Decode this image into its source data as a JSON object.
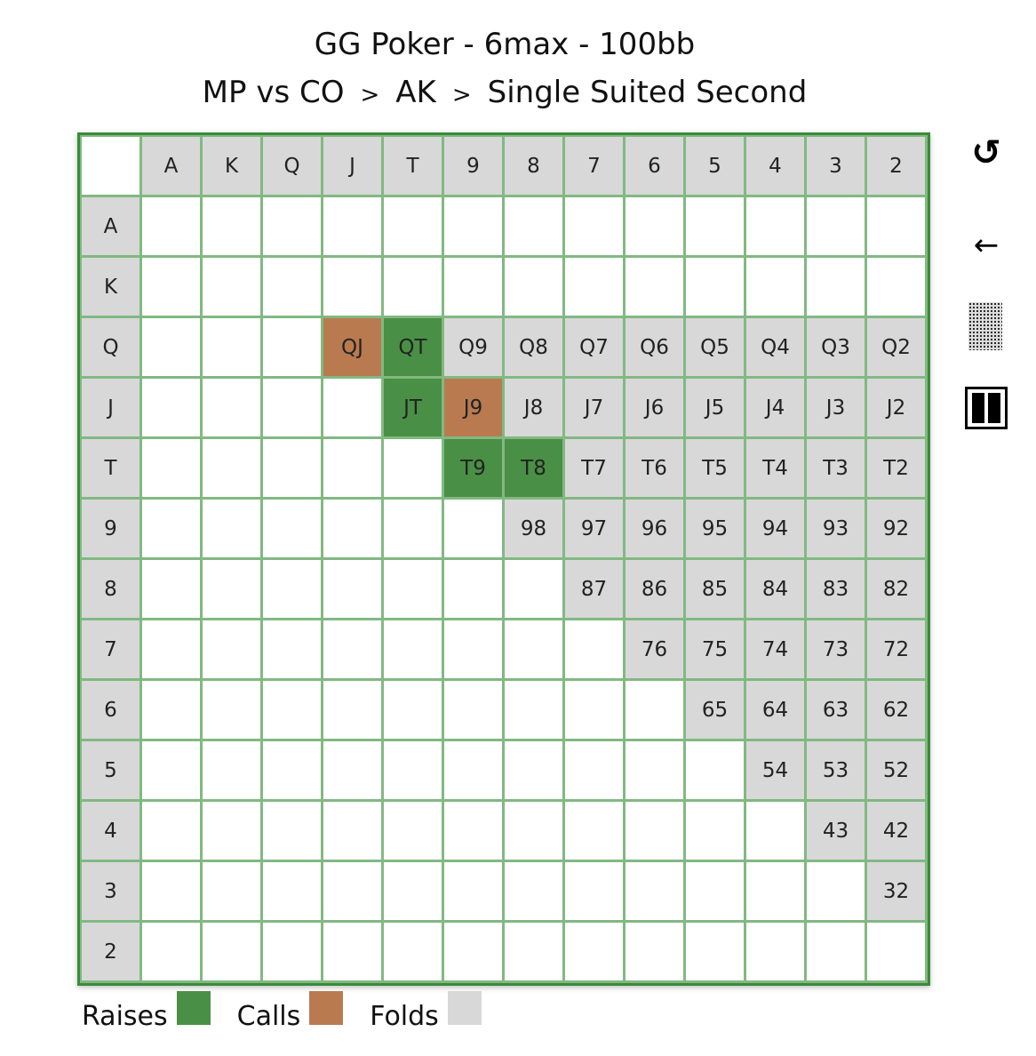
{
  "title": {
    "line1": "GG Poker - 6max - 100bb",
    "breadcrumb": [
      "MP vs CO",
      "AK",
      "Single Suited Second"
    ],
    "separator": ">"
  },
  "colors": {
    "raise": "#4a8f46",
    "call": "#b97a50",
    "fold": "#d8d8d8",
    "grid_border": "#3a8a3a"
  },
  "ranks": [
    "A",
    "K",
    "Q",
    "J",
    "T",
    "9",
    "8",
    "7",
    "6",
    "5",
    "4",
    "3",
    "2"
  ],
  "matrix": {
    "rows": [
      {
        "label": "A",
        "cells": [
          {
            "hand": "",
            "action": "empty"
          },
          {
            "hand": "",
            "action": "empty"
          },
          {
            "hand": "",
            "action": "empty"
          },
          {
            "hand": "",
            "action": "empty"
          },
          {
            "hand": "",
            "action": "empty"
          },
          {
            "hand": "",
            "action": "empty"
          },
          {
            "hand": "",
            "action": "empty"
          },
          {
            "hand": "",
            "action": "empty"
          },
          {
            "hand": "",
            "action": "empty"
          },
          {
            "hand": "",
            "action": "empty"
          },
          {
            "hand": "",
            "action": "empty"
          },
          {
            "hand": "",
            "action": "empty"
          },
          {
            "hand": "",
            "action": "empty"
          }
        ]
      },
      {
        "label": "K",
        "cells": [
          {
            "hand": "",
            "action": "empty"
          },
          {
            "hand": "",
            "action": "empty"
          },
          {
            "hand": "",
            "action": "empty"
          },
          {
            "hand": "",
            "action": "empty"
          },
          {
            "hand": "",
            "action": "empty"
          },
          {
            "hand": "",
            "action": "empty"
          },
          {
            "hand": "",
            "action": "empty"
          },
          {
            "hand": "",
            "action": "empty"
          },
          {
            "hand": "",
            "action": "empty"
          },
          {
            "hand": "",
            "action": "empty"
          },
          {
            "hand": "",
            "action": "empty"
          },
          {
            "hand": "",
            "action": "empty"
          },
          {
            "hand": "",
            "action": "empty"
          }
        ]
      },
      {
        "label": "Q",
        "cells": [
          {
            "hand": "",
            "action": "empty"
          },
          {
            "hand": "",
            "action": "empty"
          },
          {
            "hand": "",
            "action": "empty"
          },
          {
            "hand": "QJ",
            "action": "call"
          },
          {
            "hand": "QT",
            "action": "raise"
          },
          {
            "hand": "Q9",
            "action": "fold"
          },
          {
            "hand": "Q8",
            "action": "fold"
          },
          {
            "hand": "Q7",
            "action": "fold"
          },
          {
            "hand": "Q6",
            "action": "fold"
          },
          {
            "hand": "Q5",
            "action": "fold"
          },
          {
            "hand": "Q4",
            "action": "fold"
          },
          {
            "hand": "Q3",
            "action": "fold"
          },
          {
            "hand": "Q2",
            "action": "fold"
          }
        ]
      },
      {
        "label": "J",
        "cells": [
          {
            "hand": "",
            "action": "empty"
          },
          {
            "hand": "",
            "action": "empty"
          },
          {
            "hand": "",
            "action": "empty"
          },
          {
            "hand": "",
            "action": "empty"
          },
          {
            "hand": "JT",
            "action": "raise"
          },
          {
            "hand": "J9",
            "action": "call"
          },
          {
            "hand": "J8",
            "action": "fold"
          },
          {
            "hand": "J7",
            "action": "fold"
          },
          {
            "hand": "J6",
            "action": "fold"
          },
          {
            "hand": "J5",
            "action": "fold"
          },
          {
            "hand": "J4",
            "action": "fold"
          },
          {
            "hand": "J3",
            "action": "fold"
          },
          {
            "hand": "J2",
            "action": "fold"
          }
        ]
      },
      {
        "label": "T",
        "cells": [
          {
            "hand": "",
            "action": "empty"
          },
          {
            "hand": "",
            "action": "empty"
          },
          {
            "hand": "",
            "action": "empty"
          },
          {
            "hand": "",
            "action": "empty"
          },
          {
            "hand": "",
            "action": "empty"
          },
          {
            "hand": "T9",
            "action": "raise"
          },
          {
            "hand": "T8",
            "action": "raise"
          },
          {
            "hand": "T7",
            "action": "fold"
          },
          {
            "hand": "T6",
            "action": "fold"
          },
          {
            "hand": "T5",
            "action": "fold"
          },
          {
            "hand": "T4",
            "action": "fold"
          },
          {
            "hand": "T3",
            "action": "fold"
          },
          {
            "hand": "T2",
            "action": "fold"
          }
        ]
      },
      {
        "label": "9",
        "cells": [
          {
            "hand": "",
            "action": "empty"
          },
          {
            "hand": "",
            "action": "empty"
          },
          {
            "hand": "",
            "action": "empty"
          },
          {
            "hand": "",
            "action": "empty"
          },
          {
            "hand": "",
            "action": "empty"
          },
          {
            "hand": "",
            "action": "empty"
          },
          {
            "hand": "98",
            "action": "fold"
          },
          {
            "hand": "97",
            "action": "fold"
          },
          {
            "hand": "96",
            "action": "fold"
          },
          {
            "hand": "95",
            "action": "fold"
          },
          {
            "hand": "94",
            "action": "fold"
          },
          {
            "hand": "93",
            "action": "fold"
          },
          {
            "hand": "92",
            "action": "fold"
          }
        ]
      },
      {
        "label": "8",
        "cells": [
          {
            "hand": "",
            "action": "empty"
          },
          {
            "hand": "",
            "action": "empty"
          },
          {
            "hand": "",
            "action": "empty"
          },
          {
            "hand": "",
            "action": "empty"
          },
          {
            "hand": "",
            "action": "empty"
          },
          {
            "hand": "",
            "action": "empty"
          },
          {
            "hand": "",
            "action": "empty"
          },
          {
            "hand": "87",
            "action": "fold"
          },
          {
            "hand": "86",
            "action": "fold"
          },
          {
            "hand": "85",
            "action": "fold"
          },
          {
            "hand": "84",
            "action": "fold"
          },
          {
            "hand": "83",
            "action": "fold"
          },
          {
            "hand": "82",
            "action": "fold"
          }
        ]
      },
      {
        "label": "7",
        "cells": [
          {
            "hand": "",
            "action": "empty"
          },
          {
            "hand": "",
            "action": "empty"
          },
          {
            "hand": "",
            "action": "empty"
          },
          {
            "hand": "",
            "action": "empty"
          },
          {
            "hand": "",
            "action": "empty"
          },
          {
            "hand": "",
            "action": "empty"
          },
          {
            "hand": "",
            "action": "empty"
          },
          {
            "hand": "",
            "action": "empty"
          },
          {
            "hand": "76",
            "action": "fold"
          },
          {
            "hand": "75",
            "action": "fold"
          },
          {
            "hand": "74",
            "action": "fold"
          },
          {
            "hand": "73",
            "action": "fold"
          },
          {
            "hand": "72",
            "action": "fold"
          }
        ]
      },
      {
        "label": "6",
        "cells": [
          {
            "hand": "",
            "action": "empty"
          },
          {
            "hand": "",
            "action": "empty"
          },
          {
            "hand": "",
            "action": "empty"
          },
          {
            "hand": "",
            "action": "empty"
          },
          {
            "hand": "",
            "action": "empty"
          },
          {
            "hand": "",
            "action": "empty"
          },
          {
            "hand": "",
            "action": "empty"
          },
          {
            "hand": "",
            "action": "empty"
          },
          {
            "hand": "",
            "action": "empty"
          },
          {
            "hand": "65",
            "action": "fold"
          },
          {
            "hand": "64",
            "action": "fold"
          },
          {
            "hand": "63",
            "action": "fold"
          },
          {
            "hand": "62",
            "action": "fold"
          }
        ]
      },
      {
        "label": "5",
        "cells": [
          {
            "hand": "",
            "action": "empty"
          },
          {
            "hand": "",
            "action": "empty"
          },
          {
            "hand": "",
            "action": "empty"
          },
          {
            "hand": "",
            "action": "empty"
          },
          {
            "hand": "",
            "action": "empty"
          },
          {
            "hand": "",
            "action": "empty"
          },
          {
            "hand": "",
            "action": "empty"
          },
          {
            "hand": "",
            "action": "empty"
          },
          {
            "hand": "",
            "action": "empty"
          },
          {
            "hand": "",
            "action": "empty"
          },
          {
            "hand": "54",
            "action": "fold"
          },
          {
            "hand": "53",
            "action": "fold"
          },
          {
            "hand": "52",
            "action": "fold"
          }
        ]
      },
      {
        "label": "4",
        "cells": [
          {
            "hand": "",
            "action": "empty"
          },
          {
            "hand": "",
            "action": "empty"
          },
          {
            "hand": "",
            "action": "empty"
          },
          {
            "hand": "",
            "action": "empty"
          },
          {
            "hand": "",
            "action": "empty"
          },
          {
            "hand": "",
            "action": "empty"
          },
          {
            "hand": "",
            "action": "empty"
          },
          {
            "hand": "",
            "action": "empty"
          },
          {
            "hand": "",
            "action": "empty"
          },
          {
            "hand": "",
            "action": "empty"
          },
          {
            "hand": "",
            "action": "empty"
          },
          {
            "hand": "43",
            "action": "fold"
          },
          {
            "hand": "42",
            "action": "fold"
          }
        ]
      },
      {
        "label": "3",
        "cells": [
          {
            "hand": "",
            "action": "empty"
          },
          {
            "hand": "",
            "action": "empty"
          },
          {
            "hand": "",
            "action": "empty"
          },
          {
            "hand": "",
            "action": "empty"
          },
          {
            "hand": "",
            "action": "empty"
          },
          {
            "hand": "",
            "action": "empty"
          },
          {
            "hand": "",
            "action": "empty"
          },
          {
            "hand": "",
            "action": "empty"
          },
          {
            "hand": "",
            "action": "empty"
          },
          {
            "hand": "",
            "action": "empty"
          },
          {
            "hand": "",
            "action": "empty"
          },
          {
            "hand": "",
            "action": "empty"
          },
          {
            "hand": "32",
            "action": "fold"
          }
        ]
      },
      {
        "label": "2",
        "cells": [
          {
            "hand": "",
            "action": "empty"
          },
          {
            "hand": "",
            "action": "empty"
          },
          {
            "hand": "",
            "action": "empty"
          },
          {
            "hand": "",
            "action": "empty"
          },
          {
            "hand": "",
            "action": "empty"
          },
          {
            "hand": "",
            "action": "empty"
          },
          {
            "hand": "",
            "action": "empty"
          },
          {
            "hand": "",
            "action": "empty"
          },
          {
            "hand": "",
            "action": "empty"
          },
          {
            "hand": "",
            "action": "empty"
          },
          {
            "hand": "",
            "action": "empty"
          },
          {
            "hand": "",
            "action": "empty"
          },
          {
            "hand": "",
            "action": "empty"
          }
        ]
      }
    ]
  },
  "legend": [
    {
      "label": "Raises",
      "action": "raise"
    },
    {
      "label": "Calls",
      "action": "call"
    },
    {
      "label": "Folds",
      "action": "fold"
    }
  ],
  "controls": {
    "reset_glyph": "↺",
    "back_glyph": "←",
    "icons": [
      "reset-icon",
      "back-arrow-icon",
      "pattern-toggle-icon",
      "pause-icon"
    ]
  }
}
